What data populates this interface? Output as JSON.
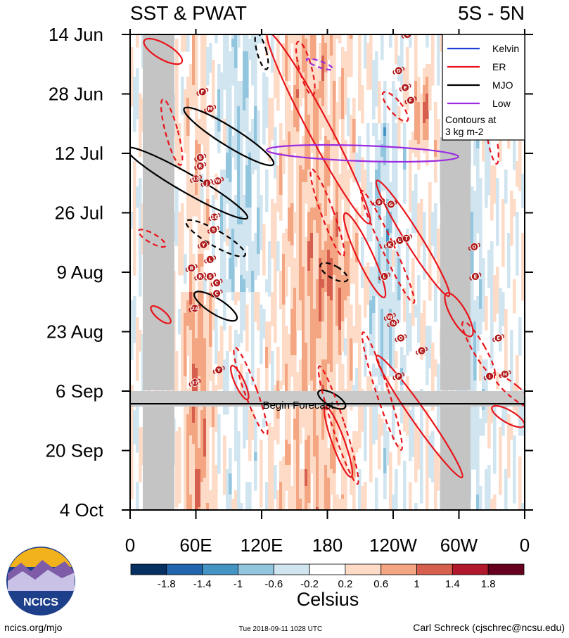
{
  "chart_data": {
    "type": "heatmap",
    "title_left": "SST & PWAT",
    "title_right": "5S - 5N",
    "x_tick_labels": [
      "0",
      "60E",
      "120E",
      "180",
      "120W",
      "60W",
      "0"
    ],
    "x_range_deg_east": [
      0,
      360
    ],
    "y_tick_labels": [
      "14 Jun",
      "28 Jun",
      "12 Jul",
      "26 Jul",
      "9 Aug",
      "23 Aug",
      "6 Sep",
      "20 Sep",
      "4 Oct"
    ],
    "forecast_label": "Begin Forecast",
    "colorbar": {
      "label": "Celsius",
      "tick_labels": [
        "-1.8",
        "-1.4",
        "-1",
        "-0.6",
        "-0.2",
        "0.2",
        "0.6",
        "1",
        "1.4",
        "1.8"
      ],
      "colors": [
        "#053061",
        "#2166ac",
        "#4393c3",
        "#92c5de",
        "#d1e5f0",
        "#ffffff",
        "#fddbc7",
        "#f4a582",
        "#d6604d",
        "#b2182b",
        "#67001f"
      ]
    },
    "legend": [
      {
        "name": "Kelvin",
        "color": "#1f3fd6"
      },
      {
        "name": "ER",
        "color": "#e8141a"
      },
      {
        "name": "MJO",
        "color": "#000000"
      },
      {
        "name": "Low",
        "color": "#9a2be2"
      }
    ],
    "legend_note": [
      "Contours at",
      "3 kg m-2"
    ],
    "storms": [
      {
        "label": "C",
        "lon": 253,
        "day": 0
      },
      {
        "label": "D",
        "lon": 245,
        "day": 8.5
      },
      {
        "label": "E",
        "lon": 251,
        "day": 12.5
      },
      {
        "label": "F",
        "lon": 256,
        "day": 15.5
      },
      {
        "label": "F",
        "lon": 66,
        "day": 13.5
      },
      {
        "label": "M",
        "lon": 73,
        "day": 17.5
      },
      {
        "label": "S",
        "lon": 64,
        "day": 29
      },
      {
        "label": "R",
        "lon": 64,
        "day": 31
      },
      {
        "label": "13",
        "lon": 60,
        "day": 34
      },
      {
        "label": "J",
        "lon": 70,
        "day": 35
      },
      {
        "label": "W",
        "lon": 80,
        "day": 34.5
      },
      {
        "label": "9",
        "lon": 227,
        "day": 39.5
      },
      {
        "label": "G",
        "lon": 238,
        "day": 40
      },
      {
        "label": "16",
        "lon": 77,
        "day": 43
      },
      {
        "label": "S",
        "lon": 76,
        "day": 46
      },
      {
        "label": "Y",
        "lon": 67,
        "day": 49.5
      },
      {
        "label": "K",
        "lon": 237,
        "day": 49.5
      },
      {
        "label": "U",
        "lon": 246,
        "day": 48.5
      },
      {
        "label": "T",
        "lon": 252,
        "day": 48
      },
      {
        "label": "O",
        "lon": 314,
        "day": 50
      },
      {
        "label": "B",
        "lon": 56,
        "day": 55
      },
      {
        "label": "L",
        "lon": 73,
        "day": 53
      },
      {
        "label": "R",
        "lon": 64,
        "day": 57
      },
      {
        "label": "S",
        "lon": 73,
        "day": 57
      },
      {
        "label": "C",
        "lon": 79,
        "day": 58.5
      },
      {
        "label": "L",
        "lon": 232,
        "day": 57
      },
      {
        "label": "E",
        "lon": 315,
        "day": 57
      },
      {
        "label": "24",
        "lon": 59,
        "day": 64.5
      },
      {
        "label": "W",
        "lon": 237,
        "day": 66.5
      },
      {
        "label": "N",
        "lon": 240,
        "day": 68
      },
      {
        "label": "O",
        "lon": 247,
        "day": 71.5
      },
      {
        "label": "C",
        "lon": 266,
        "day": 74.5
      },
      {
        "label": "E",
        "lon": 336,
        "day": 71.5
      },
      {
        "label": "Y",
        "lon": 81,
        "day": 79
      },
      {
        "label": "P",
        "lon": 245,
        "day": 80.5
      },
      {
        "label": "H",
        "lon": 342,
        "day": 80
      },
      {
        "label": "I",
        "lon": 328,
        "day": 80.5
      },
      {
        "label": "37",
        "lon": 59,
        "day": 82
      },
      {
        "label": "C",
        "lon": 79,
        "day": 61
      }
    ]
  },
  "footer": {
    "logo_text": "NCICS",
    "url": "ncics.org/mjo",
    "timestamp": "Tue 2018-09-11 1028 UTC",
    "author": "Carl Schreck (cjschrec@ncsu.edu)"
  }
}
